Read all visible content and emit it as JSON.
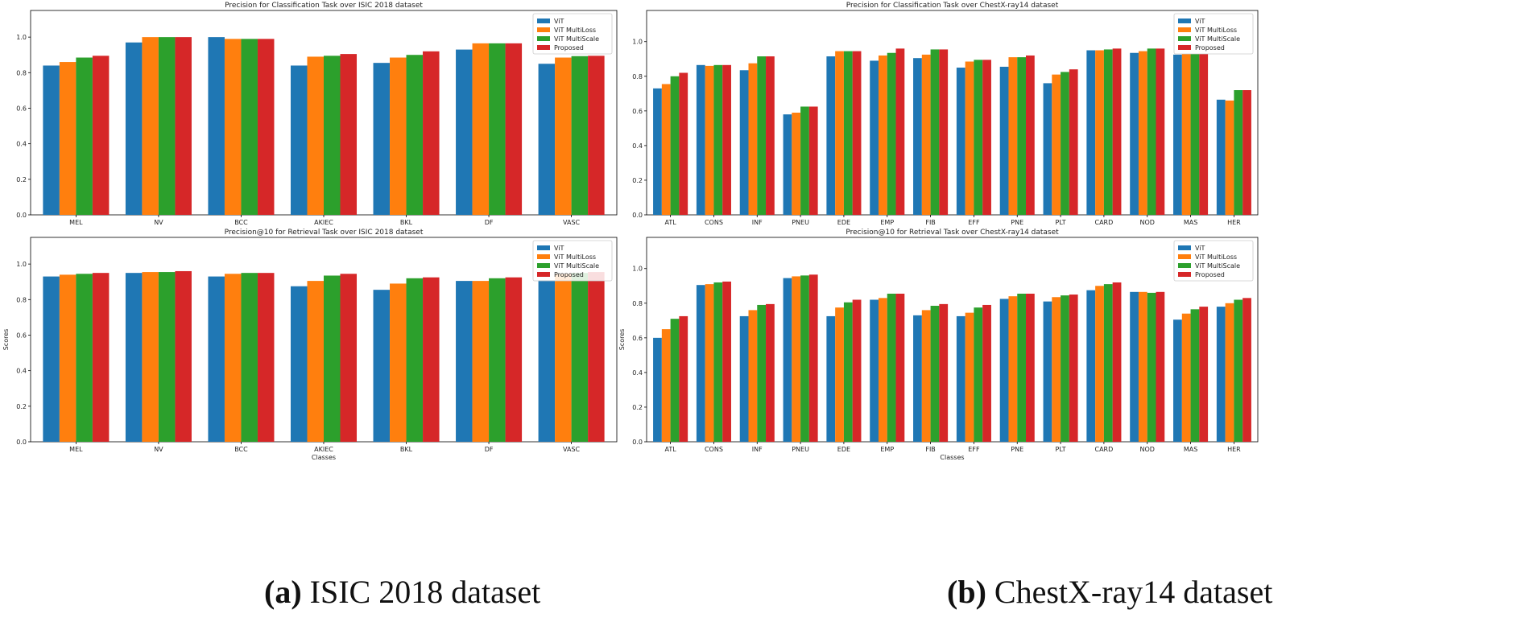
{
  "colors": {
    "vit": "#1f77b4",
    "multiloss": "#ff7f0e",
    "multiscale": "#2ca02c",
    "proposed": "#d62728"
  },
  "captions": {
    "a": {
      "label": "(a)",
      "text": " ISIC 2018 dataset"
    },
    "b": {
      "label": "(b)",
      "text": " ChestX-ray14 dataset"
    }
  },
  "chart_data": [
    {
      "type": "bar",
      "title": "Precision for Classification Task over ISIC 2018 dataset",
      "xlabel": "",
      "ylabel": "",
      "ylim": [
        0,
        1.15
      ],
      "yticks": [
        "0.0",
        "0.2",
        "0.4",
        "0.6",
        "0.8",
        "1.0"
      ],
      "categories": [
        "MEL",
        "NV",
        "BCC",
        "AKIEC",
        "BKL",
        "DF",
        "VASC"
      ],
      "legend": "top-right",
      "series": [
        {
          "name": "ViT",
          "values": [
            0.84,
            0.97,
            1.0,
            0.84,
            0.855,
            0.93,
            0.85
          ]
        },
        {
          "name": "ViT MultiLoss",
          "values": [
            0.86,
            1.0,
            0.99,
            0.89,
            0.885,
            0.965,
            0.885
          ]
        },
        {
          "name": "ViT MultiScale",
          "values": [
            0.885,
            1.0,
            0.99,
            0.895,
            0.9,
            0.965,
            0.893
          ]
        },
        {
          "name": "Proposed",
          "values": [
            0.895,
            1.0,
            0.99,
            0.905,
            0.92,
            0.965,
            0.895
          ]
        }
      ]
    },
    {
      "type": "bar",
      "title": "Precision for Classification Task over ChestX-ray14 dataset",
      "xlabel": "",
      "ylabel": "",
      "ylim": [
        0,
        1.18
      ],
      "yticks": [
        "0.0",
        "0.2",
        "0.4",
        "0.6",
        "0.8",
        "1.0"
      ],
      "categories": [
        "ATL",
        "CONS",
        "INF",
        "PNEU",
        "EDE",
        "EMP",
        "FIB",
        "EFF",
        "PNE",
        "PLT",
        "CARD",
        "NOD",
        "MAS",
        "HER"
      ],
      "legend": "top-right",
      "series": [
        {
          "name": "ViT",
          "values": [
            0.73,
            0.865,
            0.835,
            0.58,
            0.915,
            0.89,
            0.905,
            0.85,
            0.855,
            0.76,
            0.95,
            0.935,
            0.925,
            0.665
          ]
        },
        {
          "name": "ViT MultiLoss",
          "values": [
            0.755,
            0.86,
            0.875,
            0.59,
            0.945,
            0.92,
            0.925,
            0.885,
            0.91,
            0.81,
            0.95,
            0.945,
            0.93,
            0.66
          ]
        },
        {
          "name": "ViT MultiScale",
          "values": [
            0.8,
            0.865,
            0.915,
            0.625,
            0.945,
            0.935,
            0.955,
            0.895,
            0.91,
            0.825,
            0.955,
            0.96,
            0.93,
            0.72
          ]
        },
        {
          "name": "Proposed",
          "values": [
            0.82,
            0.865,
            0.915,
            0.625,
            0.945,
            0.96,
            0.955,
            0.895,
            0.92,
            0.84,
            0.96,
            0.96,
            0.93,
            0.72
          ]
        }
      ]
    },
    {
      "type": "bar",
      "title": "Precision@10 for Retrieval Task over ISIC 2018 dataset",
      "xlabel": "Classes",
      "ylabel": "Scores",
      "ylim": [
        0,
        1.15
      ],
      "yticks": [
        "0.0",
        "0.2",
        "0.4",
        "0.6",
        "0.8",
        "1.0"
      ],
      "categories": [
        "MEL",
        "NV",
        "BCC",
        "AKIEC",
        "BKL",
        "DF",
        "VASC"
      ],
      "legend": "top-right",
      "series": [
        {
          "name": "ViT",
          "values": [
            0.93,
            0.95,
            0.93,
            0.875,
            0.855,
            0.905,
            0.91
          ]
        },
        {
          "name": "ViT MultiLoss",
          "values": [
            0.94,
            0.955,
            0.945,
            0.905,
            0.89,
            0.905,
            0.945
          ]
        },
        {
          "name": "ViT MultiScale",
          "values": [
            0.945,
            0.955,
            0.95,
            0.935,
            0.92,
            0.92,
            0.95
          ]
        },
        {
          "name": "Proposed",
          "values": [
            0.95,
            0.96,
            0.95,
            0.945,
            0.925,
            0.925,
            0.955
          ]
        }
      ]
    },
    {
      "type": "bar",
      "title": "Precision@10 for Retrieval Task over ChestX-ray14 dataset",
      "xlabel": "Classes",
      "ylabel": "Scores",
      "ylim": [
        0,
        1.18
      ],
      "yticks": [
        "0.0",
        "0.2",
        "0.4",
        "0.6",
        "0.8",
        "1.0"
      ],
      "categories": [
        "ATL",
        "CONS",
        "INF",
        "PNEU",
        "EDE",
        "EMP",
        "FIB",
        "EFF",
        "PNE",
        "PLT",
        "CARD",
        "NOD",
        "MAS",
        "HER"
      ],
      "legend": "top-right",
      "series": [
        {
          "name": "ViT",
          "values": [
            0.6,
            0.905,
            0.725,
            0.945,
            0.725,
            0.82,
            0.73,
            0.725,
            0.825,
            0.81,
            0.875,
            0.865,
            0.705,
            0.78
          ]
        },
        {
          "name": "ViT MultiLoss",
          "values": [
            0.65,
            0.91,
            0.76,
            0.955,
            0.775,
            0.83,
            0.76,
            0.745,
            0.84,
            0.835,
            0.9,
            0.865,
            0.74,
            0.8
          ]
        },
        {
          "name": "ViT MultiScale",
          "values": [
            0.71,
            0.92,
            0.79,
            0.96,
            0.805,
            0.855,
            0.785,
            0.775,
            0.855,
            0.845,
            0.91,
            0.86,
            0.765,
            0.82
          ]
        },
        {
          "name": "Proposed",
          "values": [
            0.725,
            0.925,
            0.795,
            0.965,
            0.82,
            0.855,
            0.795,
            0.79,
            0.855,
            0.85,
            0.92,
            0.865,
            0.78,
            0.83
          ]
        }
      ]
    }
  ]
}
